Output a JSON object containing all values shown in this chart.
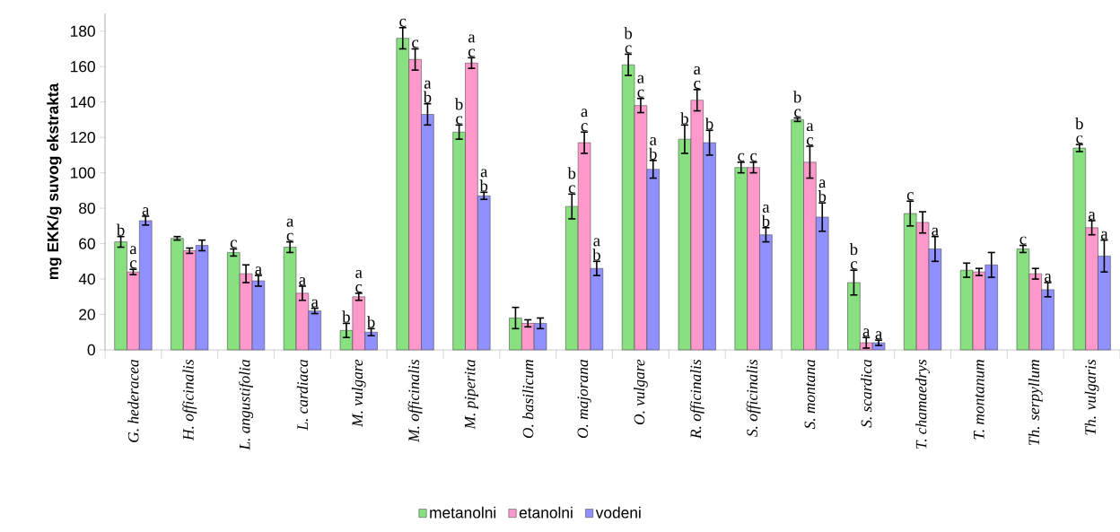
{
  "chart_data": {
    "type": "bar",
    "ylabel": "mg EKK/g suvog ekstrakta",
    "categories": [
      "G. hederacea",
      "H. officinalis",
      "L. angustifolia",
      "L. cardiaca",
      "M. vulgare",
      "M. officinalis",
      "M. piperita",
      "O. basilicum",
      "O. majorana",
      "O. vulgare",
      "R. officinalis",
      "S. officinalis",
      "S. montana",
      "S. scardica",
      "T. chamaedrys",
      "T. montanum",
      "Th. serpyllum",
      "Th. vulgaris"
    ],
    "series": [
      {
        "name": "metanolni",
        "color": "#88e080",
        "values": [
          61,
          63,
          55,
          58,
          11,
          176,
          123,
          18,
          81,
          161,
          119,
          103,
          130,
          38,
          77,
          45,
          57,
          114
        ],
        "errors": [
          3,
          1,
          2,
          3,
          4,
          6,
          4,
          6,
          7,
          6,
          8,
          3,
          1,
          7,
          7,
          4,
          2,
          2
        ],
        "value_labels": [
          "b",
          null,
          "c",
          "a c",
          "b",
          "c",
          "b c",
          null,
          "b c",
          "b c",
          "b",
          "c",
          "b c",
          "b c",
          "c",
          null,
          "c",
          "b c"
        ]
      },
      {
        "name": "etanolni",
        "color": "#ff99cc",
        "values": [
          44,
          56,
          43,
          32,
          30,
          164,
          162,
          15,
          117,
          138,
          141,
          103,
          106,
          4,
          72,
          44,
          43,
          69
        ],
        "errors": [
          1.5,
          1.5,
          5,
          4,
          2,
          6,
          3,
          2,
          6,
          4,
          6,
          3,
          9,
          3,
          6,
          2,
          3,
          4
        ],
        "value_labels": [
          "a c",
          null,
          null,
          "a",
          "a c",
          "c",
          "a c",
          null,
          "a c",
          "a c",
          "a c",
          "c",
          "a c",
          "a",
          null,
          null,
          null,
          "a"
        ]
      },
      {
        "name": "vodeni",
        "color": "#9090ff",
        "values": [
          73,
          59,
          39,
          22,
          10,
          133,
          87,
          15,
          46,
          102,
          117,
          65,
          75,
          4,
          57,
          48,
          34,
          53
        ],
        "errors": [
          2.5,
          3,
          3,
          1.5,
          2,
          6,
          2,
          3,
          4,
          5,
          7,
          4,
          8,
          1.5,
          7,
          7,
          4,
          9
        ],
        "value_labels": [
          "a",
          null,
          "a",
          "a",
          "b",
          "a b",
          "a b",
          null,
          "a b",
          "a b",
          "b",
          "a b",
          "a b",
          "a",
          "a",
          null,
          "a",
          "a"
        ]
      }
    ],
    "ylim": [
      0,
      190
    ],
    "yticks": [
      0,
      20,
      40,
      60,
      80,
      100,
      120,
      140,
      160,
      180
    ],
    "legend": "bottom"
  }
}
